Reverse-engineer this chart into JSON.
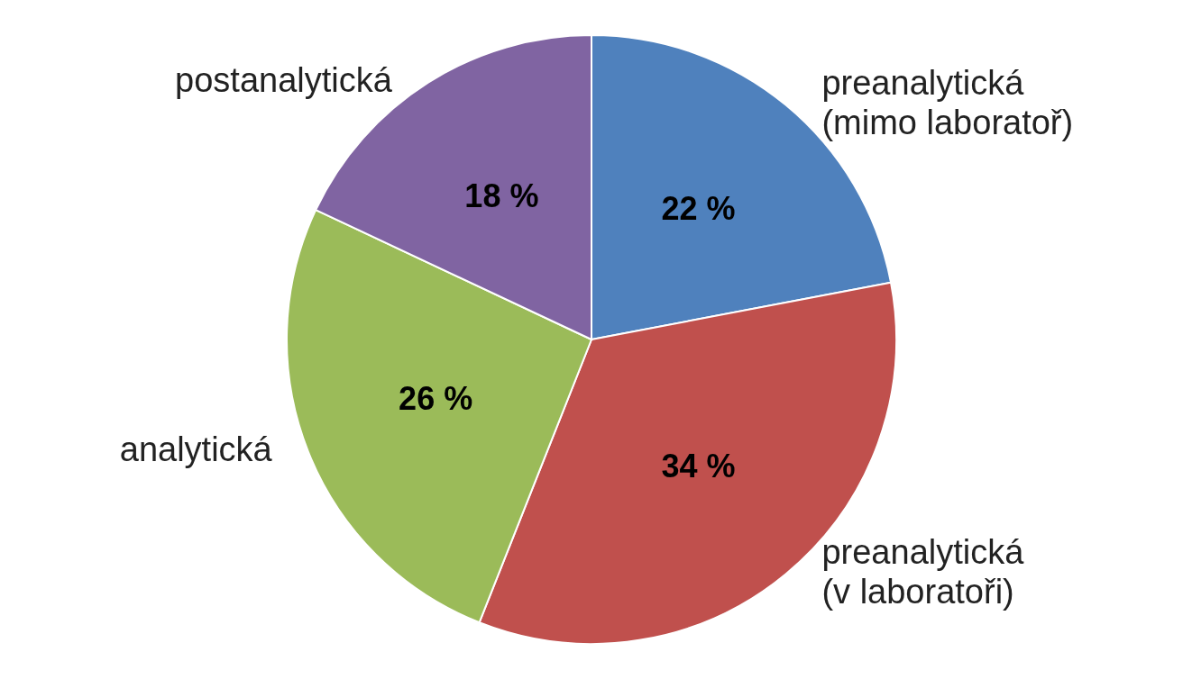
{
  "chart_data": {
    "type": "pie",
    "categories": [
      "preanalytická (mimo laboratoř)",
      "preanalytická (v laboratoři)",
      "analytická",
      "postanalytická"
    ],
    "values": [
      22,
      34,
      26,
      18
    ],
    "colors": [
      "#4f81bd",
      "#c0504d",
      "#9bbb59",
      "#8064a2"
    ],
    "value_labels": [
      "22 %",
      "34 %",
      "26 %",
      "18 %"
    ],
    "legend": false
  }
}
